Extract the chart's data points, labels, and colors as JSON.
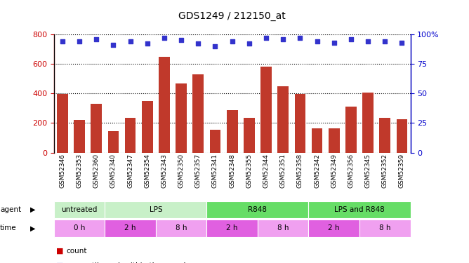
{
  "title": "GDS1249 / 212150_at",
  "samples": [
    "GSM52346",
    "GSM52353",
    "GSM52360",
    "GSM52340",
    "GSM52347",
    "GSM52354",
    "GSM52343",
    "GSM52350",
    "GSM52357",
    "GSM52341",
    "GSM52348",
    "GSM52355",
    "GSM52344",
    "GSM52351",
    "GSM52358",
    "GSM52342",
    "GSM52349",
    "GSM52356",
    "GSM52345",
    "GSM52352",
    "GSM52359"
  ],
  "counts": [
    395,
    220,
    330,
    145,
    235,
    350,
    645,
    465,
    530,
    155,
    285,
    235,
    580,
    450,
    395,
    165,
    165,
    310,
    405,
    235,
    225
  ],
  "percentiles": [
    94,
    94,
    96,
    91,
    94,
    92,
    97,
    95,
    92,
    90,
    94,
    92,
    97,
    96,
    97,
    94,
    93,
    96,
    94,
    94,
    93
  ],
  "bar_color": "#c0392b",
  "dot_color": "#3333cc",
  "ylim_left": [
    0,
    800
  ],
  "ylim_right": [
    0,
    100
  ],
  "yticks_left": [
    0,
    200,
    400,
    600,
    800
  ],
  "yticks_right": [
    0,
    25,
    50,
    75,
    100
  ],
  "agent_groups": [
    {
      "label": "untreated",
      "start": 0,
      "end": 3,
      "color": "#c8f0c8"
    },
    {
      "label": "LPS",
      "start": 3,
      "end": 9,
      "color": "#c8f0c8"
    },
    {
      "label": "R848",
      "start": 9,
      "end": 15,
      "color": "#66dd66"
    },
    {
      "label": "LPS and R848",
      "start": 15,
      "end": 21,
      "color": "#66dd66"
    }
  ],
  "time_groups": [
    {
      "label": "0 h",
      "start": 0,
      "end": 3,
      "color": "#f0a0f0"
    },
    {
      "label": "2 h",
      "start": 3,
      "end": 6,
      "color": "#e060e0"
    },
    {
      "label": "8 h",
      "start": 6,
      "end": 9,
      "color": "#f0a0f0"
    },
    {
      "label": "2 h",
      "start": 9,
      "end": 12,
      "color": "#e060e0"
    },
    {
      "label": "8 h",
      "start": 12,
      "end": 15,
      "color": "#f0a0f0"
    },
    {
      "label": "2 h",
      "start": 15,
      "end": 18,
      "color": "#e060e0"
    },
    {
      "label": "8 h",
      "start": 18,
      "end": 21,
      "color": "#f0a0f0"
    }
  ],
  "left_axis_color": "#cc0000",
  "right_axis_color": "#0000cc",
  "legend_count_color": "#cc0000",
  "legend_dot_color": "#0000cc"
}
